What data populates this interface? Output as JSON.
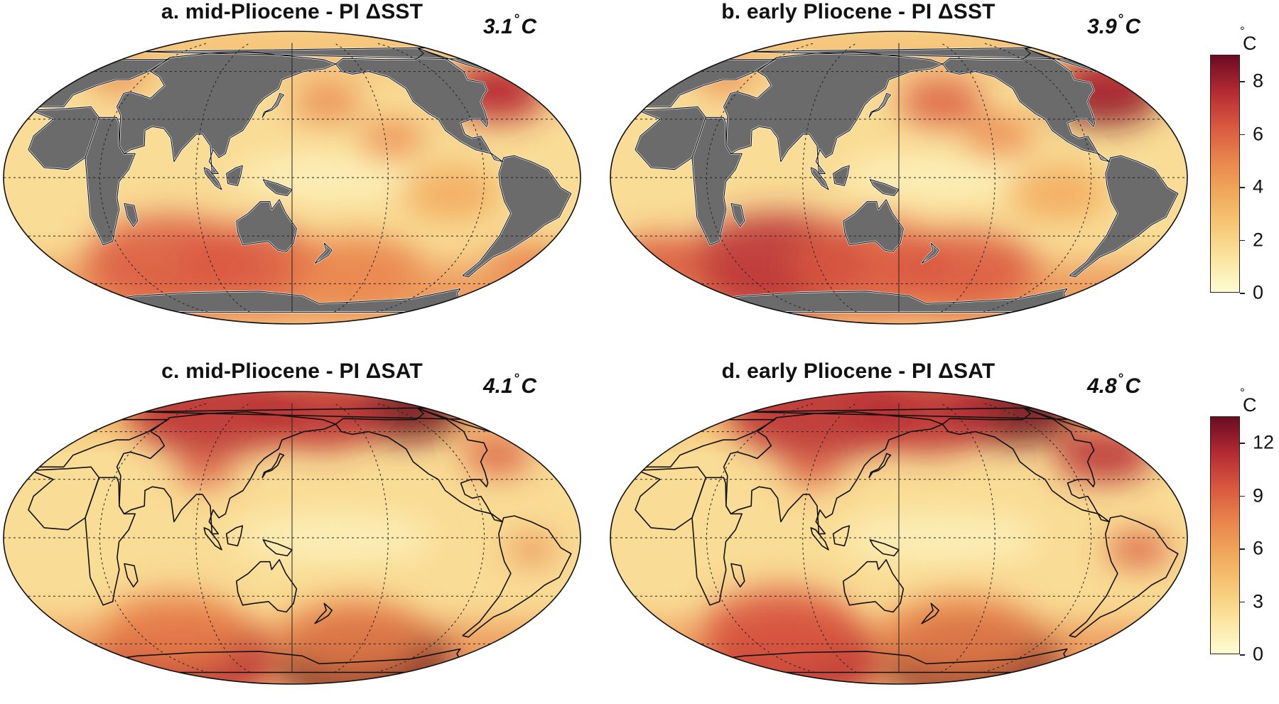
{
  "panels": [
    {
      "id": "a",
      "title": "a. mid-Pliocene - PI  ΔSST",
      "mean_value": "3.1",
      "mean_unit": "C"
    },
    {
      "id": "b",
      "title": "b. early Pliocene - PI  ΔSST",
      "mean_value": "3.9",
      "mean_unit": "C"
    },
    {
      "id": "c",
      "title": "c. mid-Pliocene - PI  ΔSAT",
      "mean_value": "4.1",
      "mean_unit": "C"
    },
    {
      "id": "d",
      "title": "d. early Pliocene - PI  ΔSAT",
      "mean_value": "4.8",
      "mean_unit": "C"
    }
  ],
  "colorbars": [
    {
      "id": "sst",
      "unit": "C",
      "ticks": [
        "0",
        "2",
        "4",
        "6",
        "8"
      ],
      "range": [
        0,
        9
      ]
    },
    {
      "id": "sat",
      "unit": "C",
      "ticks": [
        "0",
        "3",
        "6",
        "9",
        "12"
      ],
      "range": [
        0,
        13.5
      ]
    }
  ],
  "colors": {
    "land": "#6b6b6b",
    "coast_outline": "#ffffff",
    "colormap": [
      "#fefcd4",
      "#fbe5a0",
      "#f6c877",
      "#f1a85c",
      "#e9844c",
      "#d95840",
      "#b72c34",
      "#6a0b22"
    ]
  }
}
